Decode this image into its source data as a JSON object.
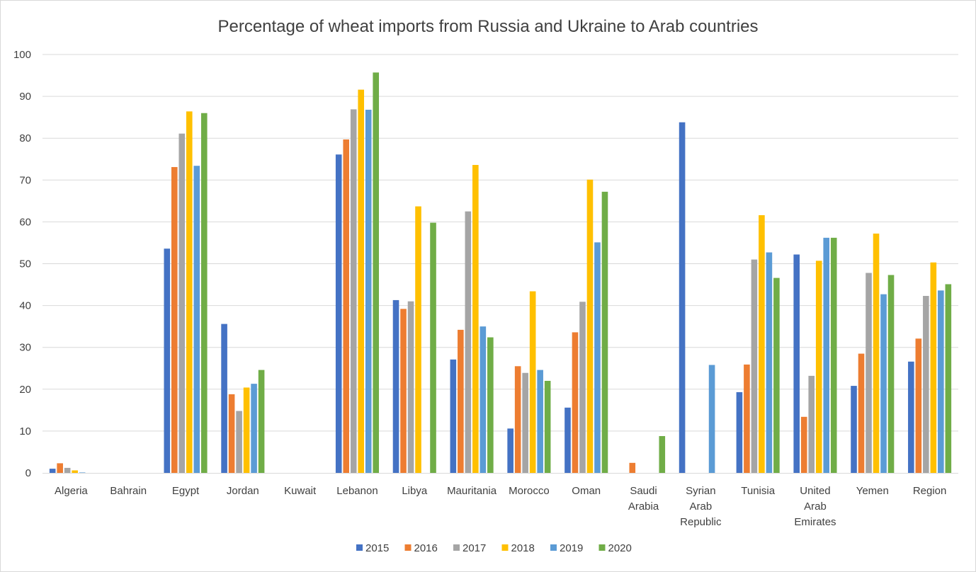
{
  "chart_data": {
    "type": "bar",
    "title": "Percentage of wheat imports from Russia and Ukraine to Arab countries",
    "xlabel": "",
    "ylabel": "",
    "ylim": [
      0,
      100
    ],
    "yticks": [
      "0",
      "10",
      "20",
      "30",
      "40",
      "50",
      "60",
      "70",
      "80",
      "90",
      "100"
    ],
    "grid": true,
    "legend_position": "bottom",
    "categories": [
      "Algeria",
      "Bahrain",
      "Egypt",
      "Jordan",
      "Kuwait",
      "Lebanon",
      "Libya",
      "Mauritania",
      "Morocco",
      "Oman",
      "Saudi Arabia",
      "Syrian Arab Republic",
      "Tunisia",
      "United Arab Emirates",
      "Yemen",
      "Region"
    ],
    "category_lines": [
      [
        "Algeria"
      ],
      [
        "Bahrain"
      ],
      [
        "Egypt"
      ],
      [
        "Jordan"
      ],
      [
        "Kuwait"
      ],
      [
        "Lebanon"
      ],
      [
        "Libya"
      ],
      [
        "Mauritania"
      ],
      [
        "Morocco"
      ],
      [
        "Oman"
      ],
      [
        "Saudi",
        "Arabia"
      ],
      [
        "Syrian",
        "Arab",
        "Republic"
      ],
      [
        "Tunisia"
      ],
      [
        "United",
        "Arab",
        "Emirates"
      ],
      [
        "Yemen"
      ],
      [
        "Region"
      ]
    ],
    "series": [
      {
        "name": "2015",
        "color": "#4472c4",
        "values": [
          1.0,
          0,
          53.6,
          35.6,
          0,
          76.1,
          41.3,
          27.1,
          10.6,
          15.6,
          0,
          83.8,
          19.3,
          52.2,
          20.8,
          26.6
        ]
      },
      {
        "name": "2016",
        "color": "#ed7d31",
        "values": [
          2.3,
          0,
          73.1,
          18.8,
          0,
          79.7,
          39.2,
          34.2,
          25.5,
          33.6,
          2.4,
          0,
          25.9,
          13.4,
          28.5,
          32.1
        ]
      },
      {
        "name": "2017",
        "color": "#a5a5a5",
        "values": [
          1.2,
          0,
          81.1,
          14.8,
          0,
          86.9,
          41.0,
          62.5,
          23.9,
          40.9,
          0,
          0,
          51.0,
          23.2,
          47.8,
          42.3
        ]
      },
      {
        "name": "2018",
        "color": "#ffc000",
        "values": [
          0.6,
          0,
          86.4,
          20.4,
          0,
          91.6,
          63.7,
          73.6,
          43.4,
          70.1,
          0,
          0,
          61.6,
          50.7,
          57.2,
          50.3
        ]
      },
      {
        "name": "2019",
        "color": "#5b9bd5",
        "values": [
          0.1,
          0,
          73.4,
          21.3,
          0,
          86.8,
          0,
          35.0,
          24.6,
          55.1,
          0,
          25.8,
          52.7,
          56.2,
          42.7,
          43.6
        ]
      },
      {
        "name": "2020",
        "color": "#70ad47",
        "values": [
          0,
          0,
          86.0,
          24.6,
          0,
          95.7,
          59.8,
          32.4,
          22.0,
          67.2,
          8.8,
          0,
          46.6,
          56.2,
          47.3,
          45.1
        ]
      }
    ],
    "colors": {
      "grid": "#d9d9d9",
      "axis": "#d9d9d9",
      "text": "#404040"
    }
  }
}
